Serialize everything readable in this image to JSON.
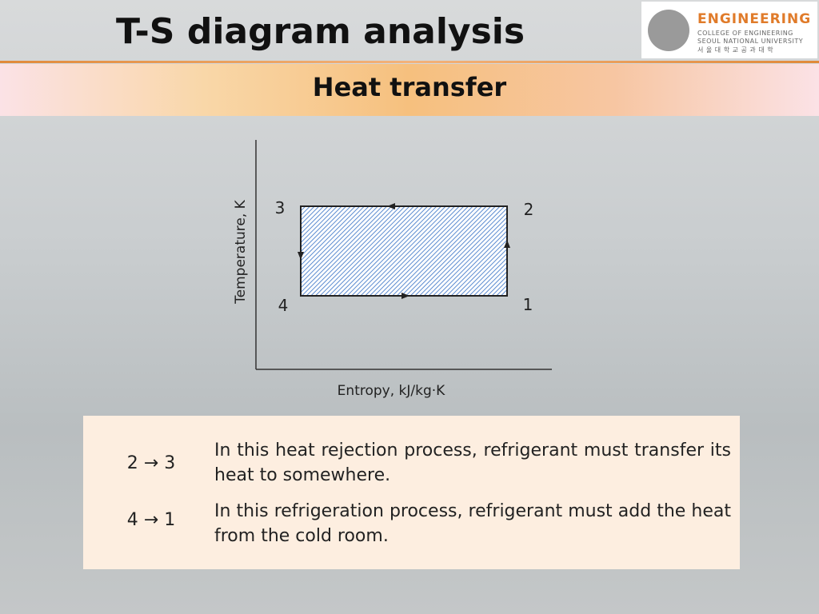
{
  "header": {
    "title": "T-S diagram analysis",
    "subtitle": "Heat transfer"
  },
  "logo": {
    "name": "ENGINEERING",
    "line1": "COLLEGE OF ENGINEERING",
    "line2": "SEOUL NATIONAL UNIVERSITY",
    "line3": "서 울 대 학 교 공 과 대 학"
  },
  "diagram": {
    "x_label": "Entropy, kJ/kg·K",
    "y_label": "Temperature, K",
    "points": [
      "1",
      "2",
      "3",
      "4"
    ]
  },
  "table": {
    "rows": [
      [
        "2 → 3",
        "In this heat rejection process, refrigerant must transfer its heat to somewhere."
      ],
      [
        "4 → 1",
        "In this refrigeration process, refrigerant must add the heat from the cold room."
      ]
    ]
  }
}
